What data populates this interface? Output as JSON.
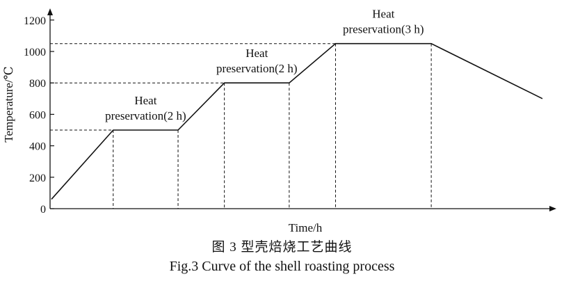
{
  "chart_data": {
    "type": "line",
    "xlabel": "Time/h",
    "ylabel": "Temperature/℃",
    "ylim": [
      0,
      1200
    ],
    "yticks": [
      0,
      200,
      400,
      600,
      800,
      1000,
      1200
    ],
    "grid": false,
    "x_time_values_shown": false,
    "reference_levels": [
      500,
      800,
      1050
    ],
    "series": [
      {
        "points": [
          {
            "x": 0,
            "y": 60
          },
          {
            "x": 1,
            "y": 500
          },
          {
            "x": 2,
            "y": 500
          },
          {
            "x": 3,
            "y": 800
          },
          {
            "x": 4,
            "y": 800
          },
          {
            "x": 5,
            "y": 1050
          },
          {
            "x": 6,
            "y": 1050
          },
          {
            "x": 7,
            "y": 700
          }
        ],
        "x_positions": [
          0,
          1.0,
          2.05,
          2.8,
          3.85,
          4.6,
          6.15,
          7.95
        ]
      }
    ],
    "annotations": [
      {
        "line1": "Heat",
        "line2": "preservation(2 h)",
        "segment": [
          1,
          2
        ]
      },
      {
        "line1": "Heat",
        "line2": "preservation(2 h)",
        "segment": [
          3,
          4
        ]
      },
      {
        "line1": "Heat",
        "line2": "preservation(3 h)",
        "segment": [
          5,
          6
        ]
      }
    ]
  },
  "caption": {
    "chinese": "图 3  型壳焙烧工艺曲线",
    "english": "Fig.3  Curve of the shell roasting process"
  }
}
